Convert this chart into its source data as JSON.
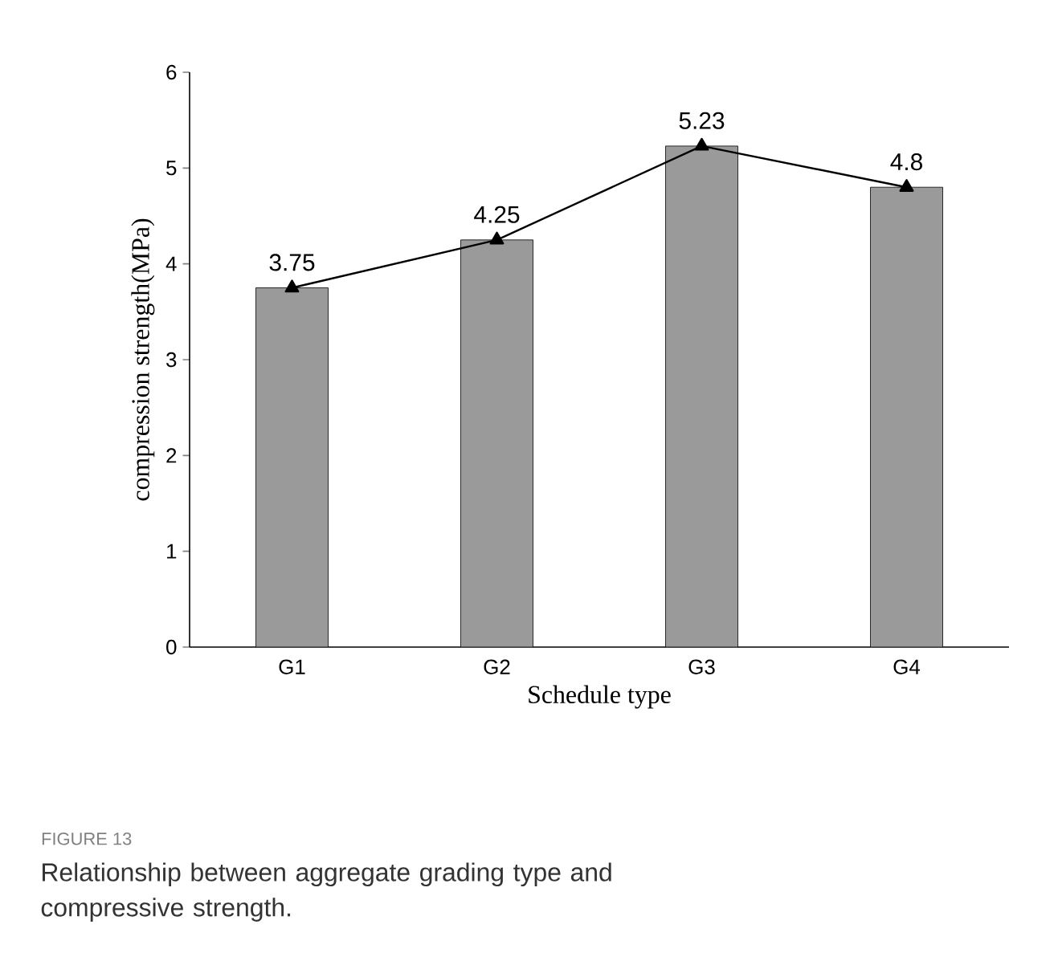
{
  "chart_data": {
    "type": "bar",
    "xlabel": "Schedule type",
    "ylabel": "compression strength(MPa)",
    "categories": [
      "G1",
      "G2",
      "G3",
      "G4"
    ],
    "series": [
      {
        "color": "#9a9a9a",
        "values": [
          3.75,
          4.25,
          5.23,
          4.8
        ]
      },
      {
        "type": "line",
        "color": "#000000",
        "marker": "triangle",
        "values": [
          3.75,
          4.25,
          5.23,
          4.8
        ],
        "value_labels": [
          "3.75",
          "4.25",
          "5.23",
          "4.8"
        ]
      }
    ],
    "ylim": [
      0,
      6
    ],
    "yticks": [
      0,
      1,
      2,
      3,
      4,
      5,
      6
    ],
    "annotations": [
      "FIGURE 13",
      "Relationship between aggregate grading type and compressive strength."
    ]
  }
}
